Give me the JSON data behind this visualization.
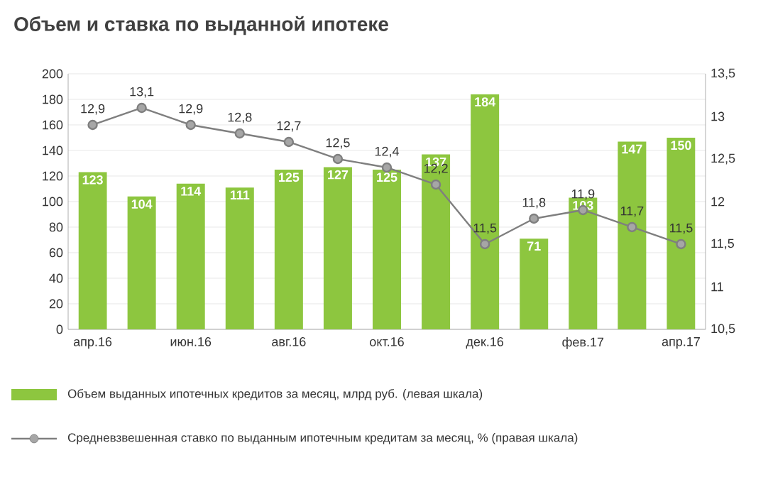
{
  "chart_data": {
    "type": "bar",
    "title": "Объем и ставка по выданной ипотеке",
    "categories": [
      "апр.16",
      null,
      "июн.16",
      null,
      "авг.16",
      null,
      "окт.16",
      null,
      "дек.16",
      null,
      "фев.17",
      null,
      "апр.17"
    ],
    "series": [
      {
        "name": "Объем выданных ипотечных кредитов за месяц, млрд руб. (левая шкала)",
        "color": "#8dc63f",
        "values": [
          123,
          104,
          114,
          111,
          125,
          127,
          125,
          137,
          184,
          71,
          103,
          147,
          150
        ],
        "value_labels": [
          "123",
          "104",
          "114",
          "111",
          "125",
          "127",
          "125",
          "137",
          "184",
          "71",
          "103",
          "147",
          "150"
        ]
      },
      {
        "name": "Средневзвешенная ставко по выданным ипотечным кредитам за месяц, % (правая шкала)",
        "type": "line",
        "axis": "y2",
        "color": "#7f7f7f",
        "marker": "circle",
        "values": [
          12.9,
          13.1,
          12.9,
          12.8,
          12.7,
          12.5,
          12.4,
          12.2,
          11.5,
          11.8,
          11.9,
          11.7,
          11.5
        ],
        "value_labels": [
          "12,9",
          "13,1",
          "12,9",
          "12,8",
          "12,7",
          "12,5",
          "12,4",
          "12,2",
          "11,5",
          "11,8",
          "11,9",
          "11,7",
          "11,5"
        ]
      }
    ],
    "ylim": [
      0,
      200
    ],
    "yticks": [
      0,
      20,
      40,
      60,
      80,
      100,
      120,
      140,
      160,
      180,
      200
    ],
    "y2lim": [
      10.5,
      13.5
    ],
    "y2ticks": [
      {
        "value": 10.5,
        "label": "10,5"
      },
      11,
      {
        "value": 11.5,
        "label": "11,5"
      },
      12,
      {
        "value": 12.5,
        "label": "12,5"
      },
      13,
      {
        "value": 13.5,
        "label": "13,5"
      }
    ],
    "legend": "bottom",
    "grid": "y"
  }
}
